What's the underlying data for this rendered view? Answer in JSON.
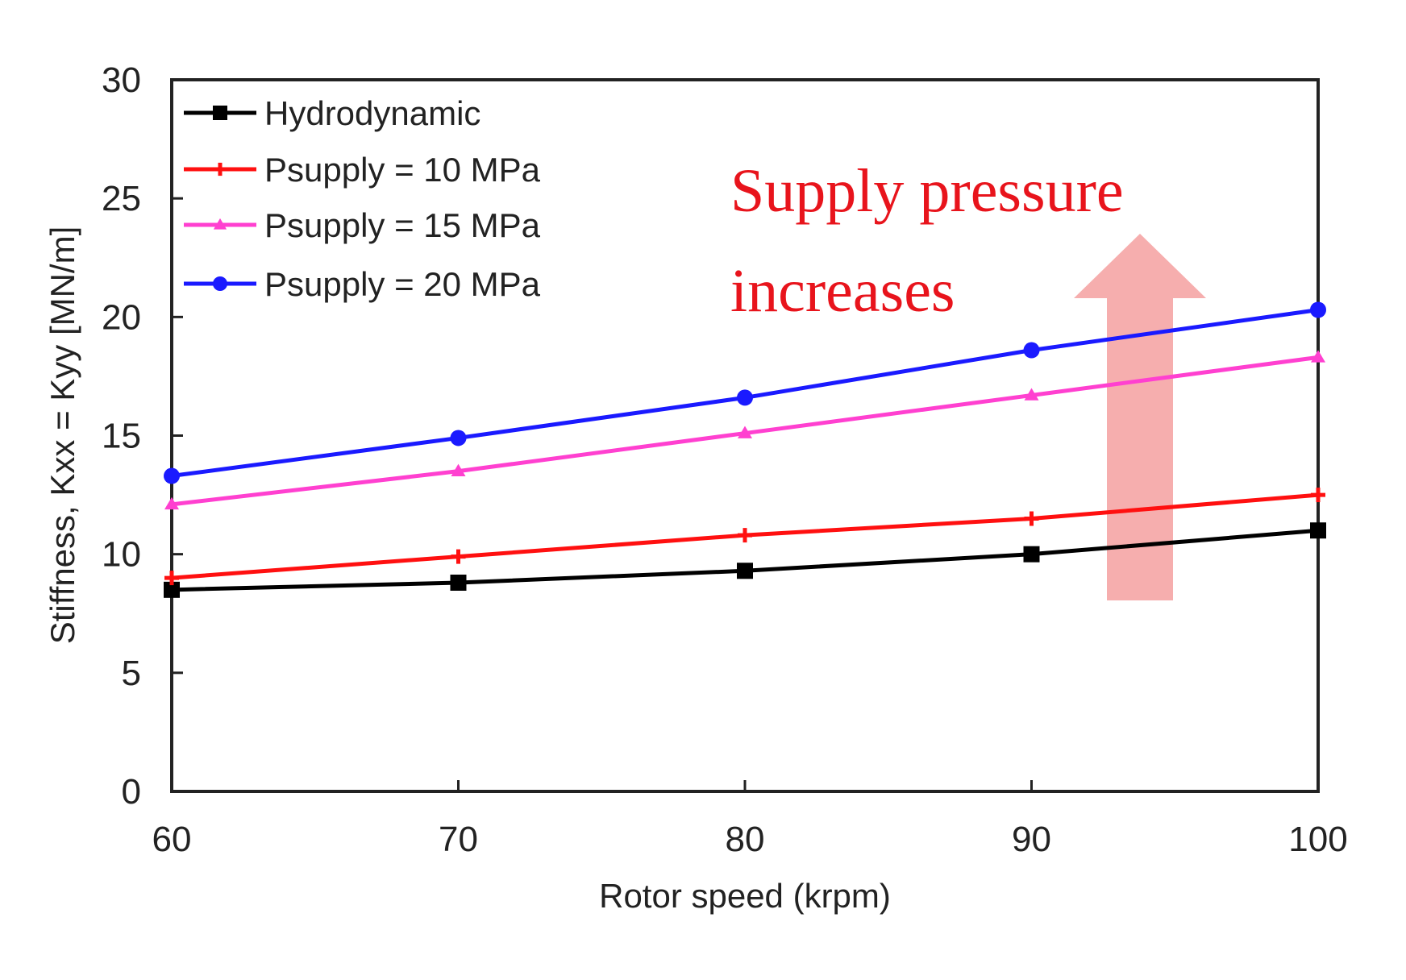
{
  "chart_data": {
    "type": "line",
    "title": "",
    "xlabel": "Rotor speed (krpm)",
    "ylabel": "Stiffness, Kxx = Kyy [MN/m]",
    "x": [
      60,
      70,
      80,
      90,
      100
    ],
    "xlim": [
      60,
      100
    ],
    "ylim": [
      0,
      30
    ],
    "xticks": [
      "60",
      "70",
      "80",
      "90",
      "100"
    ],
    "yticks": [
      "0",
      "5",
      "10",
      "15",
      "20",
      "25",
      "30"
    ],
    "grid": false,
    "legend_position": "top-left",
    "series": [
      {
        "name": "Hydrodynamic",
        "values": [
          8.5,
          8.8,
          9.3,
          10.0,
          11.0
        ],
        "color": "#000000",
        "marker": "square"
      },
      {
        "name": "Psupply = 10 MPa",
        "values": [
          9.0,
          9.9,
          10.8,
          11.5,
          12.5
        ],
        "color": "#ff1010",
        "marker": "plus"
      },
      {
        "name": "Psupply = 15 MPa",
        "values": [
          12.1,
          13.5,
          15.1,
          16.7,
          18.3
        ],
        "color": "#ff40d0",
        "marker": "triangle"
      },
      {
        "name": "Psupply = 20 MPa",
        "values": [
          13.3,
          14.9,
          16.6,
          18.6,
          20.3
        ],
        "color": "#1a1aff",
        "marker": "circle"
      }
    ],
    "annotations": [
      {
        "line1": "Supply pressure",
        "line2": "increases",
        "color": "#e8141c"
      }
    ],
    "arrow_color": "#f4a0a0"
  }
}
